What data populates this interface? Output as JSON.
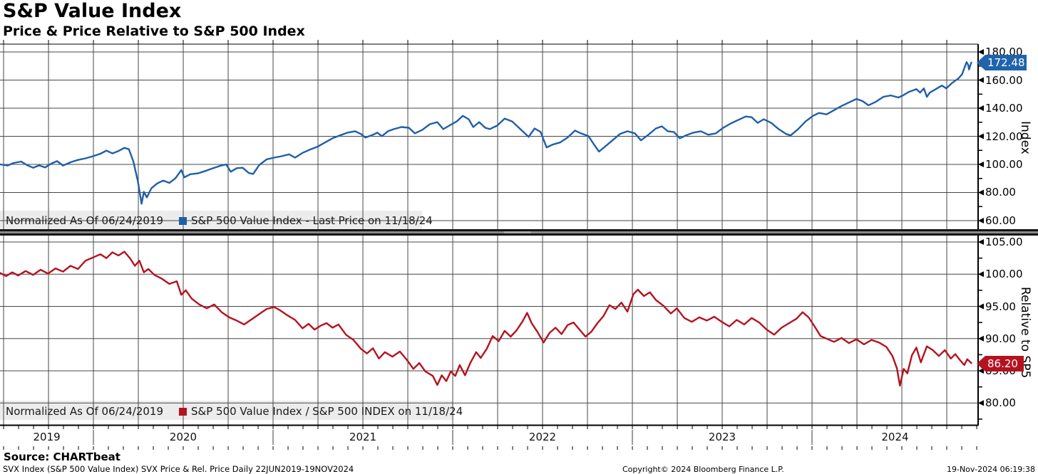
{
  "header": {
    "title": "S&P Value Index",
    "subtitle": "Price & Price Relative to S&P 500 Index"
  },
  "colors": {
    "blue_line": "#1f5fa8",
    "blue_tag_bg": "#2063ad",
    "red_line": "#b5121f",
    "red_tag_bg": "#b5121f",
    "grid": "#474747",
    "axis": "#000000",
    "legend_bg": "#ececec",
    "year_separator": "#9b9b9b"
  },
  "top_panel": {
    "legend_note": "Normalized As Of 06/24/2019",
    "legend_series": "S&P 500 Value Index - Last Price on 11/18/24",
    "last_price": "172.48",
    "axis_title": "Index",
    "y_tick_labels": [
      "180.00",
      "160.00",
      "140.00",
      "120.00",
      "100.00",
      "80.00",
      "60.00"
    ]
  },
  "bottom_panel": {
    "legend_note": "Normalized As Of 06/24/2019",
    "legend_series": "S&P 500 Value Index / S&P 500 INDEX on 11/18/24",
    "last_price": "86.20",
    "axis_title": "Relative to SP5",
    "y_tick_labels": [
      "105.00",
      "100.00",
      "95.00",
      "90.00",
      "85.00",
      "80.00"
    ]
  },
  "x_axis": {
    "years": [
      "2019",
      "2020",
      "2021",
      "2022",
      "2023",
      "2024"
    ]
  },
  "footer": {
    "source": "Source: CHARTbeat",
    "info": "SVX Index (S&P 500 Value Index) SVX Price & Rel. Price  Daily 22JUN2019-19NOV2024",
    "copyright": "Copyright© 2024 Bloomberg Finance L.P.",
    "timestamp": "19-Nov-2024 06:19:38"
  },
  "chart_data": [
    {
      "type": "line",
      "title": "S&P 500 Value Index - Last Price (Normalized As Of 06/24/2019)",
      "ylabel": "Index",
      "ylim": [
        53.9,
        185.6
      ],
      "yticks": [
        180,
        160,
        140,
        120,
        100,
        80,
        60
      ],
      "yticks_minor": [
        170,
        150,
        130,
        110,
        90,
        70
      ],
      "grid": true,
      "legend_position": "bottom-left",
      "x_unit": "months since 2019-06-24",
      "xlabels": [
        "2019",
        "2020",
        "2021",
        "2022",
        "2023",
        "2024"
      ],
      "last_price": 172.48,
      "line_color": "#1f5fa8",
      "points": [
        [
          0,
          100
        ],
        [
          0.5,
          99.2
        ],
        [
          0.9,
          101
        ],
        [
          1.4,
          102
        ],
        [
          1.8,
          99.5
        ],
        [
          2.2,
          97.6
        ],
        [
          2.6,
          99.3
        ],
        [
          3,
          97.8
        ],
        [
          3.4,
          100.5
        ],
        [
          3.8,
          102.3
        ],
        [
          4.2,
          99.2
        ],
        [
          4.7,
          101.5
        ],
        [
          5.2,
          103.2
        ],
        [
          5.7,
          104.3
        ],
        [
          6.2,
          105.8
        ],
        [
          6.7,
          107.6
        ],
        [
          7.1,
          109.8
        ],
        [
          7.5,
          107.8
        ],
        [
          7.9,
          109.5
        ],
        [
          8.3,
          111.8
        ],
        [
          8.6,
          110.8
        ],
        [
          8.9,
          102
        ],
        [
          9.2,
          88
        ],
        [
          9.45,
          72
        ],
        [
          9.6,
          80.5
        ],
        [
          9.8,
          76.5
        ],
        [
          10.1,
          83
        ],
        [
          10.5,
          86.5
        ],
        [
          10.9,
          88.5
        ],
        [
          11.3,
          86.8
        ],
        [
          11.7,
          90
        ],
        [
          12.1,
          96
        ],
        [
          12.3,
          90.8
        ],
        [
          12.7,
          93
        ],
        [
          13.2,
          93.6
        ],
        [
          13.7,
          95.3
        ],
        [
          14.2,
          97.2
        ],
        [
          14.7,
          99
        ],
        [
          15.1,
          100
        ],
        [
          15.4,
          94.8
        ],
        [
          15.8,
          97.3
        ],
        [
          16.2,
          97.6
        ],
        [
          16.6,
          93.9
        ],
        [
          16.9,
          93.2
        ],
        [
          17.3,
          99.5
        ],
        [
          17.8,
          103.6
        ],
        [
          18.3,
          104.8
        ],
        [
          18.8,
          105.8
        ],
        [
          19.3,
          107.2
        ],
        [
          19.7,
          104.8
        ],
        [
          20.2,
          108.2
        ],
        [
          20.7,
          110.6
        ],
        [
          21.2,
          112.6
        ],
        [
          21.7,
          115.6
        ],
        [
          22.2,
          118.6
        ],
        [
          22.7,
          120.6
        ],
        [
          23.2,
          122.6
        ],
        [
          23.7,
          123.6
        ],
        [
          24.1,
          121.6
        ],
        [
          24.4,
          119.1
        ],
        [
          24.8,
          120.6
        ],
        [
          25.2,
          122.6
        ],
        [
          25.5,
          120.1
        ],
        [
          25.9,
          123.6
        ],
        [
          26.3,
          125.1
        ],
        [
          26.8,
          126.6
        ],
        [
          27.3,
          126.1
        ],
        [
          27.7,
          122.1
        ],
        [
          28.2,
          124.6
        ],
        [
          28.7,
          128.6
        ],
        [
          29.2,
          130.1
        ],
        [
          29.6,
          125.1
        ],
        [
          30,
          127.6
        ],
        [
          30.5,
          130.6
        ],
        [
          30.9,
          134.6
        ],
        [
          31.3,
          132.1
        ],
        [
          31.6,
          126.6
        ],
        [
          32,
          130.1
        ],
        [
          32.4,
          126.1
        ],
        [
          32.7,
          125.1
        ],
        [
          33.2,
          127.6
        ],
        [
          33.7,
          132.6
        ],
        [
          34.2,
          130.6
        ],
        [
          34.6,
          126.6
        ],
        [
          35,
          122.6
        ],
        [
          35.3,
          119.6
        ],
        [
          35.7,
          125.6
        ],
        [
          36.1,
          123.1
        ],
        [
          36.5,
          112.1
        ],
        [
          36.9,
          114.1
        ],
        [
          37.4,
          115.6
        ],
        [
          37.9,
          119.1
        ],
        [
          38.4,
          124.1
        ],
        [
          38.8,
          122.1
        ],
        [
          39.3,
          120.1
        ],
        [
          39.7,
          113.6
        ],
        [
          40,
          109.1
        ],
        [
          40.4,
          112.6
        ],
        [
          40.9,
          117.1
        ],
        [
          41.4,
          121.6
        ],
        [
          41.9,
          123.6
        ],
        [
          42.4,
          122.1
        ],
        [
          42.8,
          117.1
        ],
        [
          43.3,
          121.1
        ],
        [
          43.8,
          125.6
        ],
        [
          44.2,
          127.1
        ],
        [
          44.6,
          123.6
        ],
        [
          45,
          123.1
        ],
        [
          45.4,
          118.6
        ],
        [
          45.8,
          120.6
        ],
        [
          46.3,
          122.6
        ],
        [
          46.8,
          123.6
        ],
        [
          47.3,
          121.1
        ],
        [
          47.8,
          122.1
        ],
        [
          48.3,
          126.1
        ],
        [
          48.8,
          129.1
        ],
        [
          49.3,
          131.6
        ],
        [
          49.8,
          134.1
        ],
        [
          50.2,
          133.6
        ],
        [
          50.6,
          129.6
        ],
        [
          51,
          132.1
        ],
        [
          51.5,
          129.6
        ],
        [
          52,
          125.1
        ],
        [
          52.5,
          121.6
        ],
        [
          52.8,
          120.6
        ],
        [
          53.3,
          125.1
        ],
        [
          53.8,
          130.6
        ],
        [
          54.3,
          134.6
        ],
        [
          54.7,
          136.6
        ],
        [
          55.2,
          135.6
        ],
        [
          55.7,
          138.6
        ],
        [
          56.2,
          141.6
        ],
        [
          56.7,
          144.1
        ],
        [
          57.2,
          146.6
        ],
        [
          57.6,
          145.1
        ],
        [
          58,
          142.1
        ],
        [
          58.5,
          144.6
        ],
        [
          59,
          148.1
        ],
        [
          59.5,
          149.1
        ],
        [
          60,
          147.6
        ],
        [
          60.3,
          149.1
        ],
        [
          60.7,
          151.6
        ],
        [
          61.2,
          153.6
        ],
        [
          61.45,
          151.1
        ],
        [
          61.7,
          154.1
        ],
        [
          61.9,
          148.1
        ],
        [
          62.1,
          151.1
        ],
        [
          62.5,
          153.6
        ],
        [
          62.9,
          156.1
        ],
        [
          63.2,
          154.1
        ],
        [
          63.6,
          158.1
        ],
        [
          64,
          161.1
        ],
        [
          64.25,
          164.1
        ],
        [
          64.45,
          170
        ],
        [
          64.55,
          172.8
        ],
        [
          64.65,
          171
        ],
        [
          64.72,
          167.5
        ],
        [
          64.8,
          170.5
        ],
        [
          64.87,
          172.48
        ]
      ]
    },
    {
      "type": "line",
      "title": "S&P 500 Value Index / S&P 500 INDEX (Normalized As Of 06/24/2019)",
      "ylabel": "Relative to SP5",
      "ylim": [
        76.6,
        106.0
      ],
      "yticks": [
        105,
        100,
        95,
        90,
        85,
        80
      ],
      "yticks_minor": [
        102.5,
        97.5,
        92.5,
        87.5,
        82.5,
        77.5
      ],
      "grid": true,
      "legend_position": "bottom-left",
      "x_unit": "months since 2019-06-24",
      "xlabels": [
        "2019",
        "2020",
        "2021",
        "2022",
        "2023",
        "2024"
      ],
      "last_price": 86.2,
      "line_color": "#b5121f",
      "points": [
        [
          0,
          100.2
        ],
        [
          0.4,
          99.7
        ],
        [
          0.8,
          100.3
        ],
        [
          1.2,
          99.8
        ],
        [
          1.7,
          100.5
        ],
        [
          2.2,
          99.9
        ],
        [
          2.7,
          100.7
        ],
        [
          3.2,
          100.1
        ],
        [
          3.7,
          100.9
        ],
        [
          4.2,
          100.4
        ],
        [
          4.7,
          101.3
        ],
        [
          5.2,
          100.8
        ],
        [
          5.7,
          102.1
        ],
        [
          6.2,
          102.6
        ],
        [
          6.7,
          103.1
        ],
        [
          7.1,
          102.5
        ],
        [
          7.5,
          103.4
        ],
        [
          7.9,
          102.9
        ],
        [
          8.3,
          103.5
        ],
        [
          8.7,
          102.4
        ],
        [
          9,
          101.3
        ],
        [
          9.3,
          102.1
        ],
        [
          9.6,
          100.3
        ],
        [
          9.9,
          100.8
        ],
        [
          10.3,
          99.9
        ],
        [
          10.8,
          99.3
        ],
        [
          11.3,
          98.5
        ],
        [
          11.8,
          98.9
        ],
        [
          12.1,
          96.8
        ],
        [
          12.4,
          97.5
        ],
        [
          12.8,
          96.2
        ],
        [
          13.3,
          95.3
        ],
        [
          13.8,
          94.7
        ],
        [
          14.3,
          95.3
        ],
        [
          14.8,
          94.1
        ],
        [
          15.3,
          93.3
        ],
        [
          15.8,
          92.8
        ],
        [
          16.3,
          92.2
        ],
        [
          16.8,
          93
        ],
        [
          17.3,
          93.8
        ],
        [
          17.8,
          94.6
        ],
        [
          18.3,
          94.9
        ],
        [
          18.7,
          94.4
        ],
        [
          19.2,
          93.6
        ],
        [
          19.7,
          92.9
        ],
        [
          20.2,
          91.6
        ],
        [
          20.6,
          92.3
        ],
        [
          21,
          91.4
        ],
        [
          21.4,
          92
        ],
        [
          21.8,
          92.4
        ],
        [
          22.2,
          91.7
        ],
        [
          22.6,
          92.2
        ],
        [
          23.1,
          90.6
        ],
        [
          23.6,
          89.8
        ],
        [
          24.1,
          88.4
        ],
        [
          24.5,
          87.7
        ],
        [
          24.9,
          88.5
        ],
        [
          25.3,
          86.9
        ],
        [
          25.7,
          87.9
        ],
        [
          26.2,
          87.2
        ],
        [
          26.7,
          88
        ],
        [
          27.2,
          86.6
        ],
        [
          27.6,
          85.3
        ],
        [
          28,
          86.2
        ],
        [
          28.4,
          84.9
        ],
        [
          28.9,
          84.2
        ],
        [
          29.2,
          82.8
        ],
        [
          29.5,
          84.3
        ],
        [
          29.8,
          83.4
        ],
        [
          30.1,
          84.9
        ],
        [
          30.4,
          84.2
        ],
        [
          30.7,
          85.9
        ],
        [
          31.05,
          84.3
        ],
        [
          31.4,
          86.2
        ],
        [
          31.8,
          87.9
        ],
        [
          32.1,
          87
        ],
        [
          32.5,
          88.4
        ],
        [
          32.9,
          90.4
        ],
        [
          33.3,
          89.6
        ],
        [
          33.7,
          91.2
        ],
        [
          34.1,
          90.3
        ],
        [
          34.5,
          91.3
        ],
        [
          34.9,
          92.7
        ],
        [
          35.2,
          94
        ],
        [
          35.5,
          92.4
        ],
        [
          35.9,
          91
        ],
        [
          36.3,
          89.4
        ],
        [
          36.7,
          90.9
        ],
        [
          37.1,
          91.7
        ],
        [
          37.5,
          90.7
        ],
        [
          37.9,
          92.1
        ],
        [
          38.3,
          92.5
        ],
        [
          38.7,
          91.4
        ],
        [
          39.1,
          90.3
        ],
        [
          39.5,
          91.1
        ],
        [
          39.9,
          92.4
        ],
        [
          40.3,
          93.5
        ],
        [
          40.7,
          95.2
        ],
        [
          41.1,
          94.6
        ],
        [
          41.5,
          95.6
        ],
        [
          41.9,
          94.2
        ],
        [
          42.3,
          96.9
        ],
        [
          42.6,
          97.6
        ],
        [
          43,
          96.6
        ],
        [
          43.4,
          97.2
        ],
        [
          43.8,
          96
        ],
        [
          44.3,
          95.1
        ],
        [
          44.8,
          93.9
        ],
        [
          45.2,
          94.7
        ],
        [
          45.7,
          93.2
        ],
        [
          46.2,
          92.6
        ],
        [
          46.7,
          93.3
        ],
        [
          47.2,
          92.8
        ],
        [
          47.7,
          93.4
        ],
        [
          48.2,
          92.6
        ],
        [
          48.7,
          91.9
        ],
        [
          49.2,
          92.9
        ],
        [
          49.7,
          92.2
        ],
        [
          50.2,
          93.2
        ],
        [
          50.7,
          92.5
        ],
        [
          51.2,
          91.4
        ],
        [
          51.7,
          90.6
        ],
        [
          52.2,
          91.7
        ],
        [
          52.7,
          92.4
        ],
        [
          53.2,
          93.1
        ],
        [
          53.6,
          94.1
        ],
        [
          54,
          93.3
        ],
        [
          54.4,
          91.9
        ],
        [
          54.8,
          90.4
        ],
        [
          55.2,
          90
        ],
        [
          55.7,
          89.5
        ],
        [
          56.2,
          90.1
        ],
        [
          56.7,
          89.3
        ],
        [
          57.2,
          89.9
        ],
        [
          57.7,
          89.1
        ],
        [
          58.2,
          89.8
        ],
        [
          58.7,
          89.4
        ],
        [
          59.2,
          88.7
        ],
        [
          59.6,
          87.3
        ],
        [
          59.9,
          85.4
        ],
        [
          60.1,
          82.7
        ],
        [
          60.35,
          85.3
        ],
        [
          60.6,
          84.6
        ],
        [
          60.9,
          87.4
        ],
        [
          61.2,
          88.6
        ],
        [
          61.5,
          86.3
        ],
        [
          61.9,
          88.8
        ],
        [
          62.3,
          88.2
        ],
        [
          62.7,
          87.3
        ],
        [
          63.1,
          88.2
        ],
        [
          63.5,
          86.9
        ],
        [
          63.8,
          87.6
        ],
        [
          64.1,
          86.7
        ],
        [
          64.4,
          85.9
        ],
        [
          64.6,
          86.8
        ],
        [
          64.87,
          86.2
        ]
      ]
    }
  ]
}
